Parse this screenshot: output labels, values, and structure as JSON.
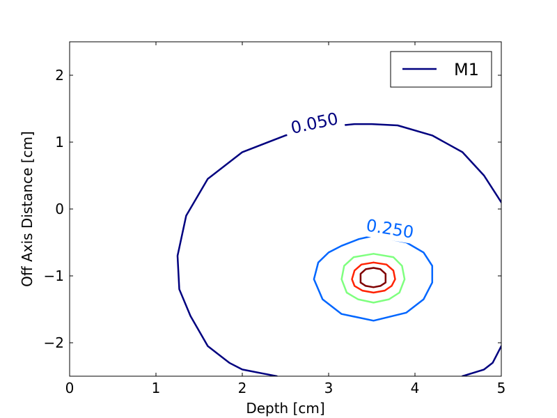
{
  "chart_data": {
    "type": "contour",
    "title": "",
    "xlabel": "Depth [cm]",
    "ylabel": "Off Axis Distance [cm]",
    "xlim": [
      0,
      5
    ],
    "ylim": [
      -2.5,
      2.5
    ],
    "xticks": [
      0,
      1,
      2,
      3,
      4,
      5
    ],
    "xtick_labels": [
      "0",
      "1",
      "2",
      "3",
      "4",
      "5"
    ],
    "yticks": [
      2,
      1,
      0,
      -1,
      -2
    ],
    "ytick_labels": [
      "2",
      "1",
      "0",
      "−1",
      "−2"
    ],
    "legend": {
      "entries": [
        {
          "name": "M1",
          "color": "#00007f"
        }
      ],
      "placement": "top-right"
    },
    "grid": false,
    "levels": [
      {
        "value": 0.05,
        "label": "0.050",
        "color": "#00007f",
        "label_at": [
          2.85,
          1.2
        ],
        "label_angle": -12,
        "points": [
          [
            2.4,
            -2.5
          ],
          [
            2.0,
            -2.4
          ],
          [
            1.85,
            -2.3
          ],
          [
            1.6,
            -2.05
          ],
          [
            1.4,
            -1.6
          ],
          [
            1.27,
            -1.2
          ],
          [
            1.25,
            -0.7
          ],
          [
            1.35,
            -0.1
          ],
          [
            1.6,
            0.45
          ],
          [
            2.0,
            0.85
          ],
          [
            2.5,
            1.1
          ],
          [
            3.0,
            1.23
          ],
          [
            3.3,
            1.27
          ],
          [
            3.5,
            1.27
          ],
          [
            3.8,
            1.25
          ],
          [
            4.2,
            1.1
          ],
          [
            4.55,
            0.85
          ],
          [
            4.8,
            0.5
          ],
          [
            4.95,
            0.2
          ],
          [
            5.0,
            0.1
          ]
        ],
        "points2": [
          [
            4.55,
            -2.5
          ],
          [
            4.8,
            -2.4
          ],
          [
            4.9,
            -2.3
          ],
          [
            5.0,
            -2.05
          ]
        ]
      },
      {
        "value": 0.25,
        "label": "0.250",
        "color": "#0066ff",
        "label_at": [
          3.7,
          -0.38
        ],
        "label_angle": 9,
        "points": [
          [
            3.52,
            -0.4
          ],
          [
            3.9,
            -0.5
          ],
          [
            4.1,
            -0.65
          ],
          [
            4.2,
            -0.85
          ],
          [
            4.2,
            -1.1
          ],
          [
            4.1,
            -1.35
          ],
          [
            3.9,
            -1.55
          ],
          [
            3.52,
            -1.67
          ],
          [
            3.15,
            -1.57
          ],
          [
            2.93,
            -1.35
          ],
          [
            2.83,
            -1.05
          ],
          [
            2.88,
            -0.8
          ],
          [
            3.0,
            -0.65
          ],
          [
            3.15,
            -0.55
          ],
          [
            3.35,
            -0.45
          ],
          [
            3.52,
            -0.4
          ]
        ]
      },
      {
        "value": 0.5,
        "color": "#7fff7f",
        "points": [
          [
            3.52,
            -0.67
          ],
          [
            3.75,
            -0.72
          ],
          [
            3.85,
            -0.85
          ],
          [
            3.88,
            -1.05
          ],
          [
            3.82,
            -1.25
          ],
          [
            3.7,
            -1.35
          ],
          [
            3.52,
            -1.4
          ],
          [
            3.34,
            -1.35
          ],
          [
            3.21,
            -1.25
          ],
          [
            3.15,
            -1.05
          ],
          [
            3.18,
            -0.85
          ],
          [
            3.29,
            -0.72
          ],
          [
            3.52,
            -0.67
          ]
        ]
      },
      {
        "value": 0.75,
        "color": "#ff2200",
        "points": [
          [
            3.52,
            -0.8
          ],
          [
            3.67,
            -0.83
          ],
          [
            3.75,
            -0.92
          ],
          [
            3.77,
            -1.05
          ],
          [
            3.73,
            -1.15
          ],
          [
            3.65,
            -1.22
          ],
          [
            3.52,
            -1.25
          ],
          [
            3.39,
            -1.22
          ],
          [
            3.3,
            -1.15
          ],
          [
            3.27,
            -1.05
          ],
          [
            3.3,
            -0.92
          ],
          [
            3.38,
            -0.83
          ],
          [
            3.52,
            -0.8
          ]
        ]
      },
      {
        "value": 0.95,
        "color": "#7f0000",
        "points": [
          [
            3.52,
            -0.88
          ],
          [
            3.6,
            -0.9
          ],
          [
            3.66,
            -0.97
          ],
          [
            3.66,
            -1.1
          ],
          [
            3.6,
            -1.15
          ],
          [
            3.52,
            -1.17
          ],
          [
            3.43,
            -1.15
          ],
          [
            3.37,
            -1.1
          ],
          [
            3.37,
            -0.97
          ],
          [
            3.43,
            -0.9
          ],
          [
            3.52,
            -0.88
          ]
        ]
      }
    ]
  }
}
